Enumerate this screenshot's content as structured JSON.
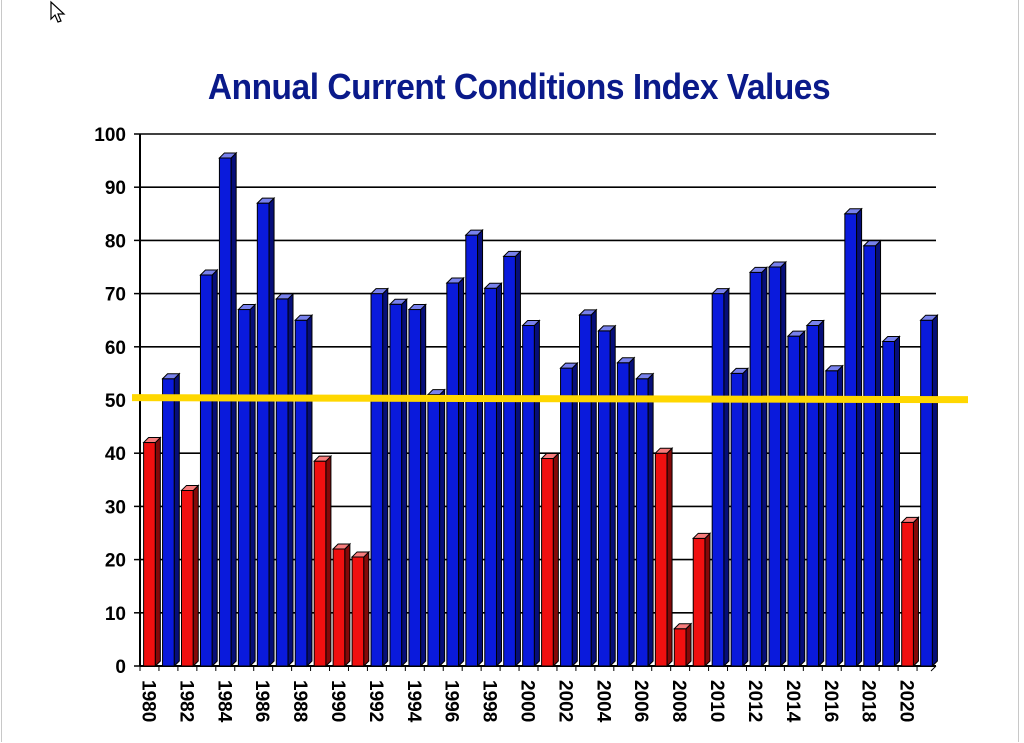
{
  "chart_data": {
    "type": "bar",
    "title": "Annual Current Conditions Index Values",
    "xlabel": "",
    "ylabel": "",
    "ylim": [
      0,
      100
    ],
    "yticks": [
      "0",
      "10",
      "20",
      "30",
      "40",
      "50",
      "60",
      "70",
      "80",
      "90",
      "100"
    ],
    "grid": true,
    "reference_line": {
      "value": 51,
      "color": "#FFD700"
    },
    "colors": {
      "above": "#0A1ADC",
      "below": "#F01010"
    },
    "categories": [
      "1980",
      "1981",
      "1982",
      "1983",
      "1984",
      "1985",
      "1986",
      "1987",
      "1988",
      "1989",
      "1990",
      "1991",
      "1992",
      "1993",
      "1994",
      "1995",
      "1996",
      "1997",
      "1998",
      "1999",
      "2000",
      "2001",
      "2002",
      "2003",
      "2004",
      "2005",
      "2006",
      "2007",
      "2008",
      "2009",
      "2010",
      "2011",
      "2012",
      "2013",
      "2014",
      "2015",
      "2016",
      "2017",
      "2018",
      "2019",
      "2020",
      "2021"
    ],
    "tick_labels": [
      "1980",
      "",
      "1982",
      "",
      "1984",
      "",
      "1986",
      "",
      "1988",
      "",
      "1990",
      "",
      "1992",
      "",
      "1994",
      "",
      "1996",
      "",
      "1998",
      "",
      "2000",
      "",
      "2002",
      "",
      "2004",
      "",
      "2006",
      "",
      "2008",
      "",
      "2010",
      "",
      "2012",
      "",
      "2014",
      "",
      "2016",
      "",
      "2018",
      "",
      "2020",
      ""
    ],
    "values": [
      42,
      54,
      33,
      73.5,
      95.5,
      67,
      87,
      69,
      65,
      38.5,
      22,
      20.5,
      70,
      68,
      67,
      51,
      72,
      81,
      71,
      77,
      64,
      39,
      56,
      66,
      63,
      57,
      54,
      40,
      7,
      24,
      70,
      55,
      74,
      75,
      62,
      64,
      55.5,
      85,
      79,
      61,
      27,
      65
    ],
    "bar_colors": [
      "red",
      "blue",
      "red",
      "blue",
      "blue",
      "blue",
      "blue",
      "blue",
      "blue",
      "red",
      "red",
      "red",
      "blue",
      "blue",
      "blue",
      "blue",
      "blue",
      "blue",
      "blue",
      "blue",
      "blue",
      "red",
      "blue",
      "blue",
      "blue",
      "blue",
      "blue",
      "red",
      "red",
      "red",
      "blue",
      "blue",
      "blue",
      "blue",
      "blue",
      "blue",
      "blue",
      "blue",
      "blue",
      "blue",
      "red",
      "blue"
    ]
  }
}
